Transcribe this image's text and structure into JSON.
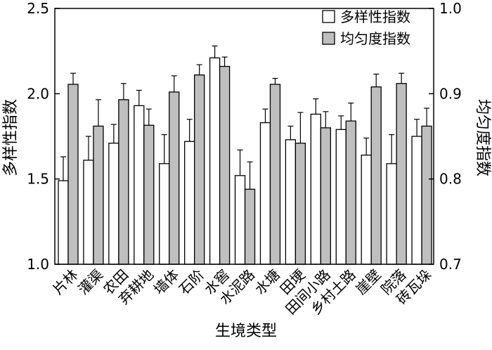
{
  "chart_data": {
    "type": "bar",
    "xlabel": "生境类型",
    "ylabel_left": "多样性指数",
    "ylabel_right": "均匀度指数",
    "ylim_left": [
      1.0,
      2.5
    ],
    "ylim_right": [
      0.7,
      1.0
    ],
    "yticks_left": [
      "1.0",
      "1.5",
      "2.0",
      "2.5"
    ],
    "yticks_right": [
      "0.7",
      "0.8",
      "0.9",
      "1.0"
    ],
    "legend_position": "top-right",
    "categories": [
      "片林",
      "灌渠",
      "农田",
      "弃耕地",
      "墙体",
      "石阶",
      "水窖",
      "水泥路",
      "水塘",
      "田埂",
      "田间小路",
      "乡村土路",
      "崖壁",
      "院落",
      "砖瓦垛"
    ],
    "series": [
      {
        "name": "多样性指数",
        "axis": "left",
        "color": "#ffffff",
        "values": [
          1.49,
          1.61,
          1.71,
          1.93,
          1.59,
          1.72,
          2.21,
          1.52,
          1.83,
          1.73,
          1.88,
          1.79,
          1.64,
          1.59,
          1.75
        ],
        "errors": [
          0.14,
          0.14,
          0.11,
          0.09,
          0.17,
          0.13,
          0.07,
          0.15,
          0.08,
          0.08,
          0.09,
          0.08,
          0.1,
          0.17,
          0.1
        ]
      },
      {
        "name": "均匀度指数",
        "axis": "right",
        "color": "#bfbfbf",
        "values": [
          0.911,
          0.862,
          0.893,
          0.863,
          0.902,
          0.922,
          0.932,
          0.788,
          0.911,
          0.842,
          0.86,
          0.868,
          0.908,
          0.912,
          0.862
        ],
        "errors": [
          0.013,
          0.031,
          0.019,
          0.019,
          0.019,
          0.012,
          0.011,
          0.032,
          0.007,
          0.036,
          0.019,
          0.021,
          0.015,
          0.012,
          0.021
        ]
      }
    ]
  }
}
